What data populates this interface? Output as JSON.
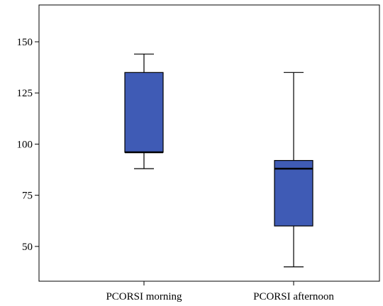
{
  "chart_data": {
    "type": "box",
    "title": "",
    "xlabel": "",
    "ylabel": "",
    "ylim": [
      33,
      168
    ],
    "yticks": [
      50,
      75,
      100,
      125,
      150
    ],
    "grid": false,
    "categories": [
      "PCORSI morning",
      "PCORSI afternoon"
    ],
    "boxes": [
      {
        "category": "PCORSI morning",
        "min": 88,
        "q1": 96,
        "median": 96,
        "q3": 135,
        "max": 144
      },
      {
        "category": "PCORSI afternoon",
        "min": 40,
        "q1": 60,
        "median": 88,
        "q3": 92,
        "max": 135
      }
    ]
  },
  "colors": {
    "box_fill": "#3f5bb5",
    "line": "#000000",
    "background": "#ffffff"
  }
}
